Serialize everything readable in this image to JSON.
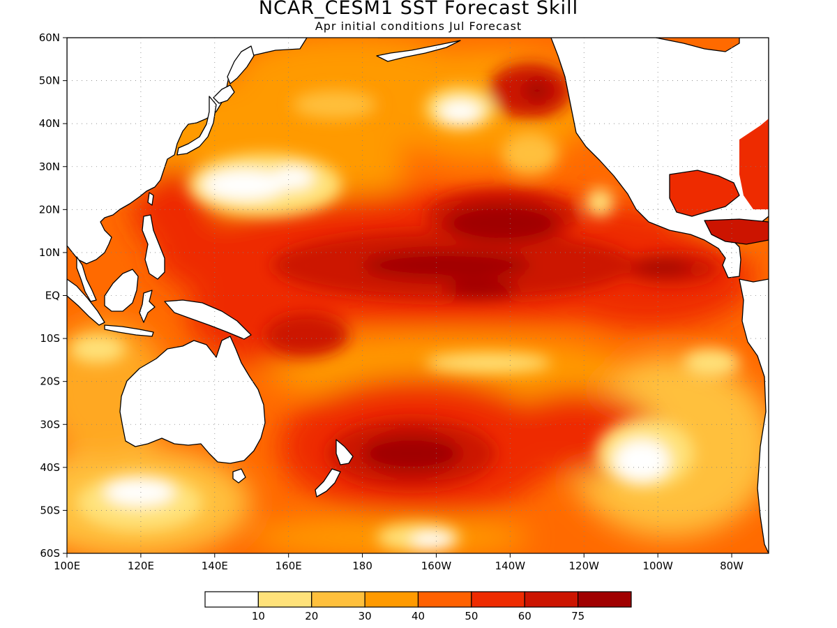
{
  "title": "NCAR_CESM1 SST Forecast Skill",
  "subtitle": "Apr initial conditions  Jul Forecast",
  "map": {
    "lon_range": [
      100,
      290
    ],
    "lat_range": [
      -60,
      60
    ],
    "lat_ticks": [
      {
        "value": 60,
        "label": "60N"
      },
      {
        "value": 50,
        "label": "50N"
      },
      {
        "value": 40,
        "label": "40N"
      },
      {
        "value": 30,
        "label": "30N"
      },
      {
        "value": 20,
        "label": "20N"
      },
      {
        "value": 10,
        "label": "10N"
      },
      {
        "value": 0,
        "label": "EQ"
      },
      {
        "value": -10,
        "label": "10S"
      },
      {
        "value": -20,
        "label": "20S"
      },
      {
        "value": -30,
        "label": "30S"
      },
      {
        "value": -40,
        "label": "40S"
      },
      {
        "value": -50,
        "label": "50S"
      },
      {
        "value": -60,
        "label": "60S"
      }
    ],
    "lon_ticks": [
      {
        "value": 100,
        "label": "100E"
      },
      {
        "value": 120,
        "label": "120E"
      },
      {
        "value": 140,
        "label": "140E"
      },
      {
        "value": 160,
        "label": "160E"
      },
      {
        "value": 180,
        "label": "180"
      },
      {
        "value": 200,
        "label": "160W"
      },
      {
        "value": 220,
        "label": "140W"
      },
      {
        "value": 240,
        "label": "120W"
      },
      {
        "value": 260,
        "label": "100W"
      },
      {
        "value": 280,
        "label": "80W"
      }
    ]
  },
  "legend": {
    "colors": [
      "#ffffff",
      "#ffe27a",
      "#ffc03c",
      "#ff9a00",
      "#ff6100",
      "#ee2b00",
      "#cc1400",
      "#a00000"
    ],
    "labels": [
      "10",
      "20",
      "30",
      "40",
      "50",
      "60",
      "75"
    ]
  }
}
